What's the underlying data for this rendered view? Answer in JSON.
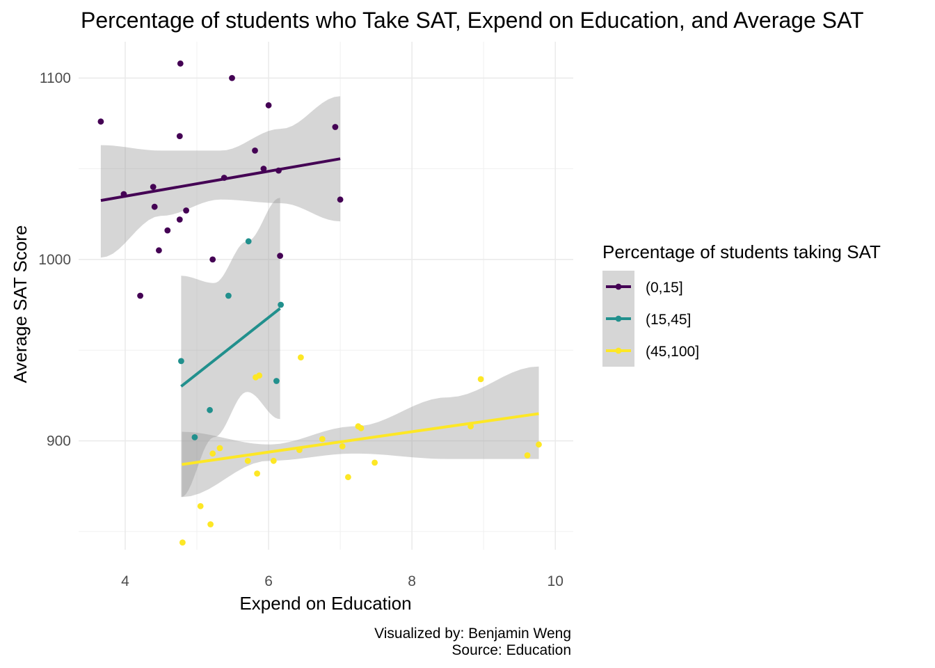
{
  "chart_data": {
    "type": "scatter",
    "title": "Percentage of students who Take SAT, Expend on Education, and Average SAT",
    "xlabel": "Expend on Education",
    "ylabel": "Average SAT Score",
    "xlim": [
      3.35,
      10.25
    ],
    "ylim": [
      840,
      1120
    ],
    "x_ticks": [
      4,
      6,
      8,
      10
    ],
    "y_ticks": [
      900,
      1000,
      1100
    ],
    "grid": true,
    "legend": {
      "title": "Percentage of students taking SAT",
      "position": "right"
    },
    "caption": [
      "Visualized by: Benjamin Weng",
      "Source: Education"
    ],
    "series": [
      {
        "name": "(0,15]",
        "color": "#440154",
        "points": [
          [
            3.66,
            1076
          ],
          [
            3.98,
            1036
          ],
          [
            4.21,
            980
          ],
          [
            4.39,
            1040
          ],
          [
            4.41,
            1029
          ],
          [
            4.47,
            1005
          ],
          [
            4.59,
            1016
          ],
          [
            4.76,
            1022
          ],
          [
            4.76,
            1068
          ],
          [
            4.77,
            1108
          ],
          [
            4.85,
            1027
          ],
          [
            5.22,
            1000
          ],
          [
            5.38,
            1045
          ],
          [
            5.49,
            1100
          ],
          [
            5.81,
            1060
          ],
          [
            5.93,
            1050
          ],
          [
            6.0,
            1085
          ],
          [
            6.14,
            1049
          ],
          [
            6.16,
            1002
          ],
          [
            6.93,
            1073
          ],
          [
            7.0,
            1033
          ]
        ],
        "fit": {
          "x": [
            3.66,
            7.0
          ],
          "y": [
            1032.5,
            1055.5
          ]
        },
        "band": {
          "x": [
            3.66,
            4.5,
            5.33,
            6.17,
            7.0
          ],
          "lower": [
            1001,
            1024,
            1033,
            1031,
            1021
          ],
          "upper": [
            1063,
            1060,
            1060,
            1072,
            1090
          ]
        }
      },
      {
        "name": "(15,45]",
        "color": "#21908d",
        "points": [
          [
            4.78,
            944
          ],
          [
            4.97,
            902
          ],
          [
            5.18,
            917
          ],
          [
            5.44,
            980
          ],
          [
            5.72,
            1010
          ],
          [
            6.11,
            933
          ],
          [
            6.17,
            975
          ]
        ],
        "fit": {
          "x": [
            4.78,
            6.16
          ],
          "y": [
            930,
            973
          ]
        },
        "band": {
          "x": [
            4.78,
            5.24,
            5.7,
            6.16
          ],
          "lower": [
            869,
            902,
            927,
            912
          ],
          "upper": [
            991,
            987,
            1010,
            1034
          ]
        }
      },
      {
        "name": "(45,100]",
        "color": "#fde725",
        "points": [
          [
            4.8,
            844
          ],
          [
            5.05,
            864
          ],
          [
            5.19,
            854
          ],
          [
            5.22,
            893
          ],
          [
            5.32,
            896
          ],
          [
            5.71,
            889
          ],
          [
            5.82,
            935
          ],
          [
            5.84,
            882
          ],
          [
            5.87,
            936
          ],
          [
            6.07,
            889
          ],
          [
            6.43,
            895
          ],
          [
            6.45,
            946
          ],
          [
            6.75,
            901
          ],
          [
            7.03,
            897
          ],
          [
            7.11,
            880
          ],
          [
            7.25,
            908
          ],
          [
            7.29,
            907
          ],
          [
            7.48,
            888
          ],
          [
            8.82,
            908
          ],
          [
            8.96,
            934
          ],
          [
            9.61,
            892
          ],
          [
            9.77,
            898
          ]
        ],
        "fit": {
          "x": [
            4.79,
            9.77
          ],
          "y": [
            887,
            915
          ]
        },
        "band": {
          "x": [
            4.79,
            6.0,
            7.2,
            8.5,
            9.77
          ],
          "lower": [
            869,
            889,
            893,
            890,
            890
          ],
          "upper": [
            905,
            898,
            908,
            924,
            941
          ]
        }
      }
    ]
  }
}
